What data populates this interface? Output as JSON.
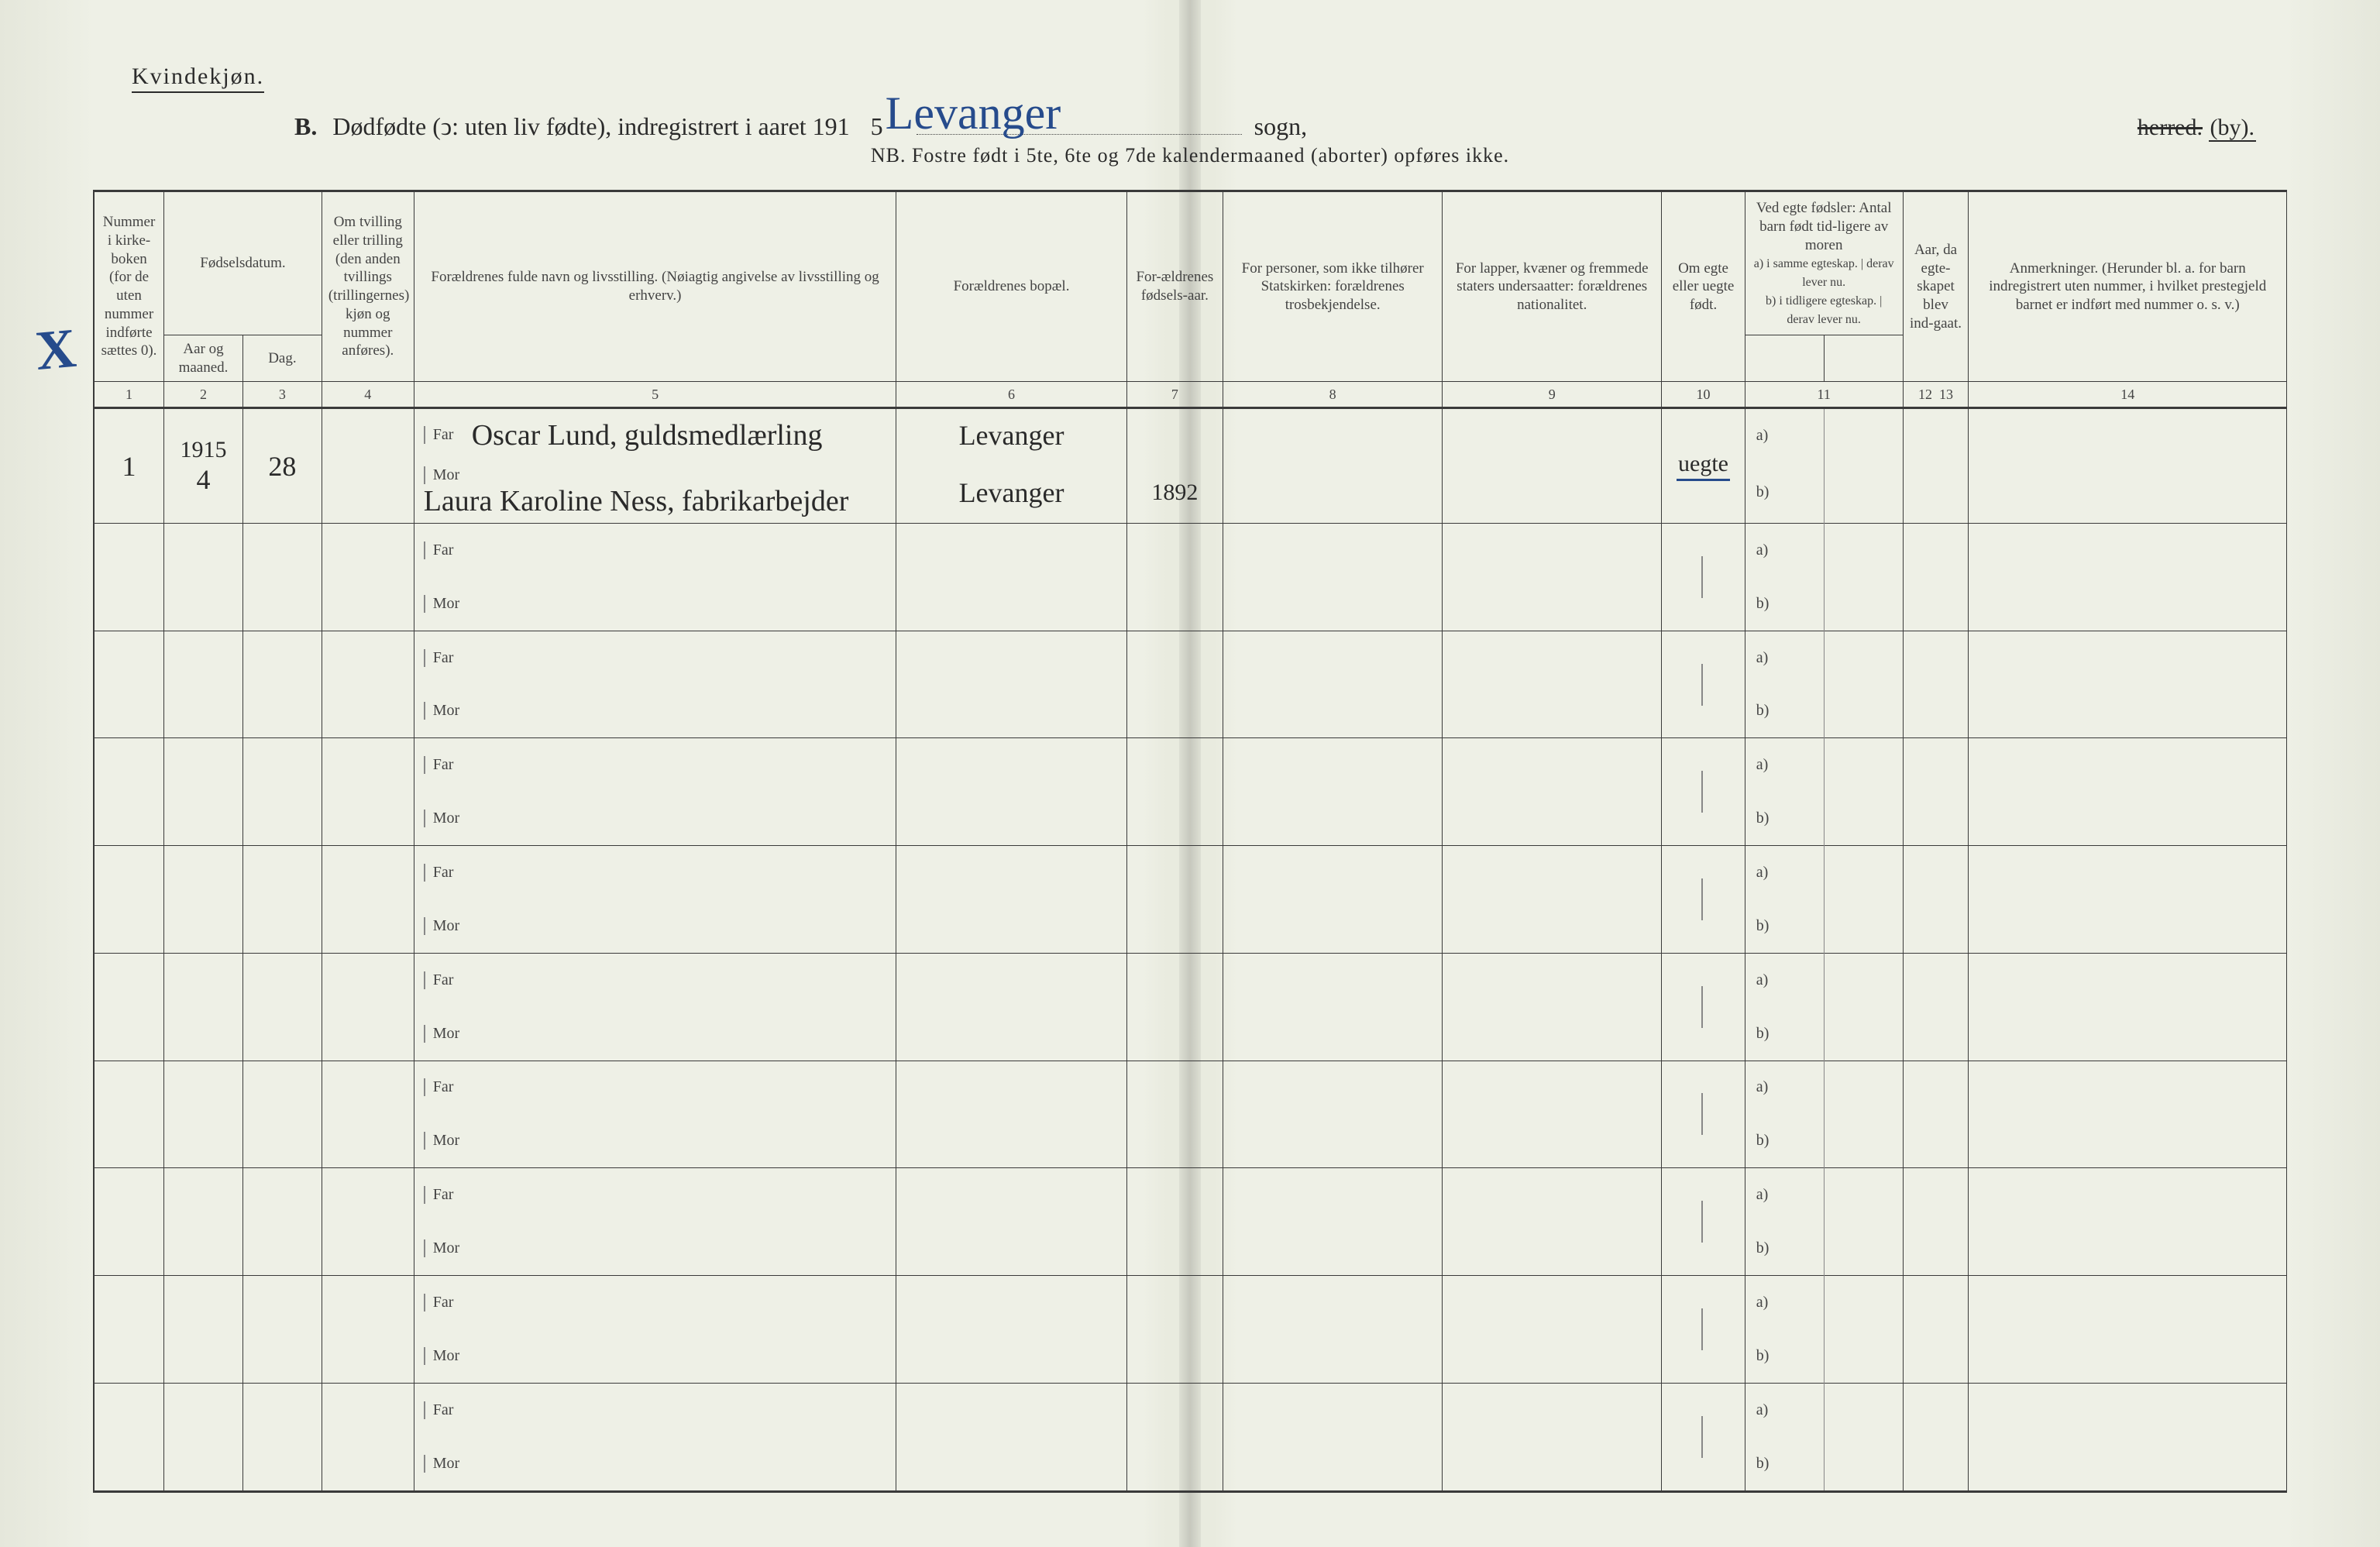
{
  "page": {
    "gender_heading": "Kvindekjøn.",
    "title_prefix": "B.",
    "title_main": "Dødfødte (ↄ: uten liv fødte), indregistrert i aaret 191",
    "title_year_last_digit": "5",
    "title_year_overwrite": ".",
    "sogn_handwritten": "Levanger",
    "sogn_label": "sogn,",
    "herred_struck": "herred.",
    "by_label": "(by).",
    "nb_line": "NB. Fostre født i 5te, 6te og 7de kalendermaaned (aborter) opføres ikke."
  },
  "columns": {
    "c1": "Nummer i kirke-boken (for de uten nummer indførte sættes 0).",
    "c2_3_group": "Fødselsdatum.",
    "c2": "Aar og maaned.",
    "c3": "Dag.",
    "c4": "Om tvilling eller trilling (den anden tvillings (trillingernes) kjøn og nummer anføres).",
    "c5": "Forældrenes fulde navn og livsstilling. (Nøiagtig angivelse av livsstilling og erhverv.)",
    "c6": "Forældrenes bopæl.",
    "c7": "For-ældrenes fødsels-aar.",
    "c8": "For personer, som ikke tilhører Statskirken: forældrenes trosbekjendelse.",
    "c9": "For lapper, kvæner og fremmede staters undersaatter: forældrenes nationalitet.",
    "c10": "Om egte eller uegte født.",
    "c11_group": "Ved egte fødsler: Antal barn født tid-ligere av moren",
    "c11a": "a) i samme egteskap.",
    "c11b": "derav lever nu.",
    "c11c": "b) i tidligere egteskap.",
    "c11d": "derav lever nu.",
    "c12": "Aar, da egte-skapet blev ind-gaat.",
    "c14": "Anmerkninger. (Herunder bl. a. for barn indregistrert uten nummer, i hvilket prestegjeld barnet er indført med nummer o. s. v.)"
  },
  "colnums": [
    "1",
    "2",
    "3",
    "4",
    "5",
    "6",
    "7",
    "8",
    "9",
    "10",
    "11",
    "12",
    "13",
    "14"
  ],
  "parent_labels": {
    "far": "Far",
    "mor": "Mor"
  },
  "ab_labels": {
    "a": "a)",
    "b": "b)"
  },
  "entries": [
    {
      "num": "1",
      "aar_maaned_top": "1915",
      "aar_maaned_bot": "4",
      "dag": "28",
      "far_name": "Oscar Lund, guldsmedlærling",
      "far_bopel": "Levanger",
      "far_faar": "",
      "mor_name": "Laura Karoline Ness, fabrikarbejder",
      "mor_bopel": "Levanger",
      "mor_faar": "1892",
      "egte": "uegte"
    }
  ],
  "blank_row_count": 9,
  "style": {
    "paper_bg": "#eef0e6",
    "rule_color": "#3a3a3a",
    "hand_blue": "#264b8c",
    "hand_ink": "#2a2a2a",
    "font_header_pt": 19,
    "font_title_pt": 32,
    "font_hand_pt": 38
  }
}
